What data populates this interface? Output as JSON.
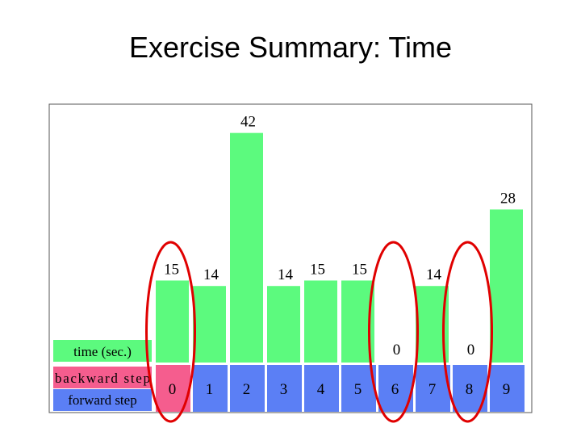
{
  "slide": {
    "title": "Exercise Summary: Time"
  },
  "colors": {
    "bar": "#5cfa7e",
    "time_row": "#5cfa7e",
    "backward_cell": "#f55d8e",
    "forward_cell": "#5b7ff5",
    "highlight_ellipse": "#e00000",
    "frame": "#555555"
  },
  "chart_data": {
    "type": "bar",
    "categories": [
      "0",
      "1",
      "2",
      "3",
      "4",
      "5",
      "6",
      "7",
      "8",
      "9"
    ],
    "series": [
      {
        "name": "time (sec.)",
        "values": [
          15,
          14,
          42,
          14,
          15,
          15,
          0,
          14,
          0,
          28
        ]
      }
    ],
    "row_labels": [
      "time (sec.)",
      "backward step",
      "forward step"
    ],
    "step_types": [
      "backward",
      "forward",
      "forward",
      "forward",
      "forward",
      "forward",
      "forward",
      "forward",
      "forward",
      "forward"
    ],
    "value_labels": [
      "15",
      "14",
      "42",
      "14",
      "15",
      "15",
      "0",
      "14",
      "0",
      "28"
    ],
    "highlighted_categories": [
      "0",
      "6",
      "8"
    ],
    "grid": false,
    "legend": "none"
  }
}
